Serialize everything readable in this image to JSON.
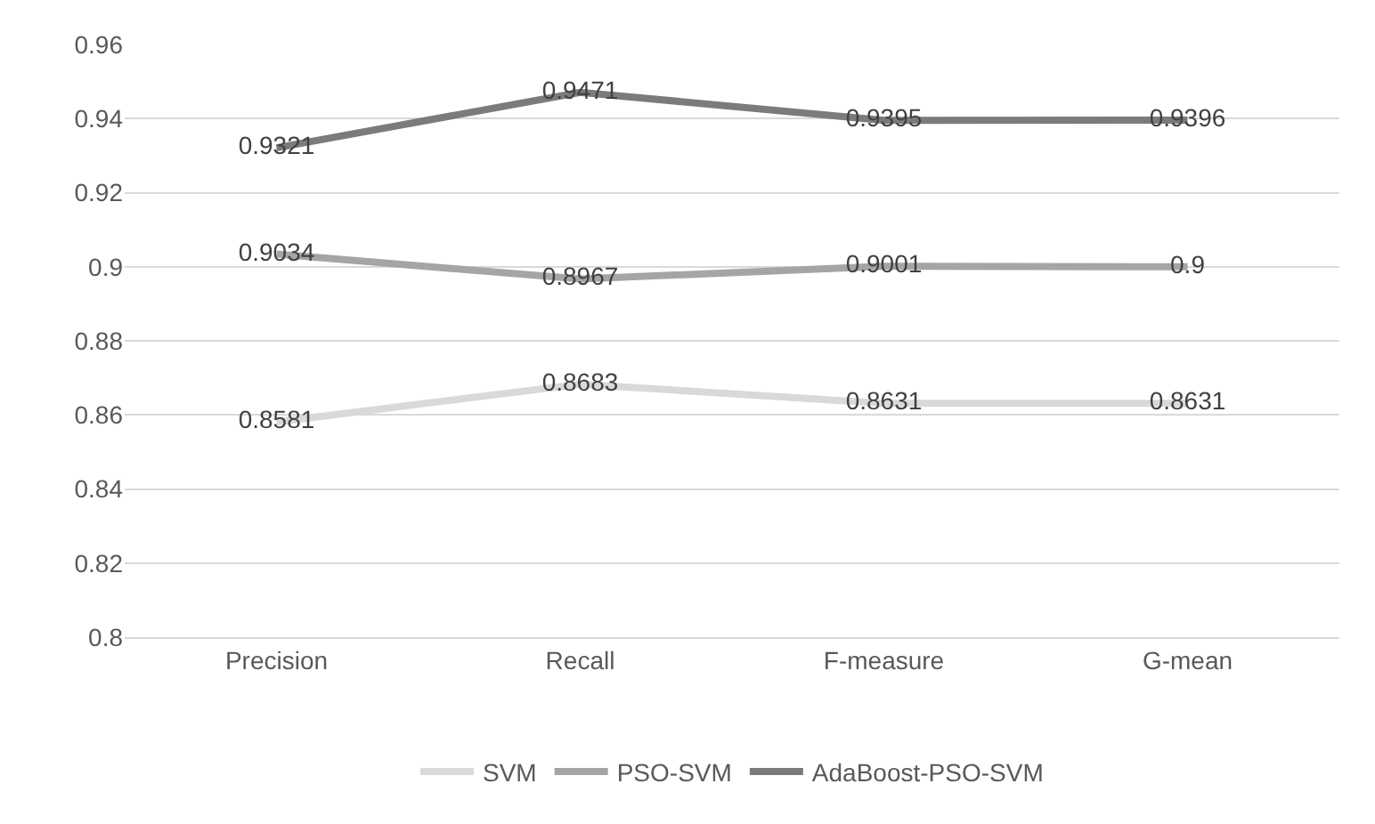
{
  "chart_data": {
    "type": "line",
    "categories": [
      "Precision",
      "Recall",
      "F-measure",
      "G-mean"
    ],
    "series": [
      {
        "name": "SVM",
        "color": "#d9d9d9",
        "values": [
          0.8581,
          0.8683,
          0.8631,
          0.8631
        ]
      },
      {
        "name": "PSO-SVM",
        "color": "#a5a5a5",
        "values": [
          0.9034,
          0.8967,
          0.9001,
          0.9
        ]
      },
      {
        "name": "AdaBoost-PSO-SVM",
        "color": "#7b7b7b",
        "values": [
          0.9321,
          0.9471,
          0.9395,
          0.9396
        ]
      }
    ],
    "ylim": [
      0.8,
      0.96
    ],
    "yticks": [
      0.8,
      0.82,
      0.84,
      0.86,
      0.88,
      0.9,
      0.92,
      0.94,
      0.96
    ],
    "grid": "y",
    "legend": "bottom",
    "data_labels": true,
    "marker": "none",
    "line_style": "solid"
  }
}
